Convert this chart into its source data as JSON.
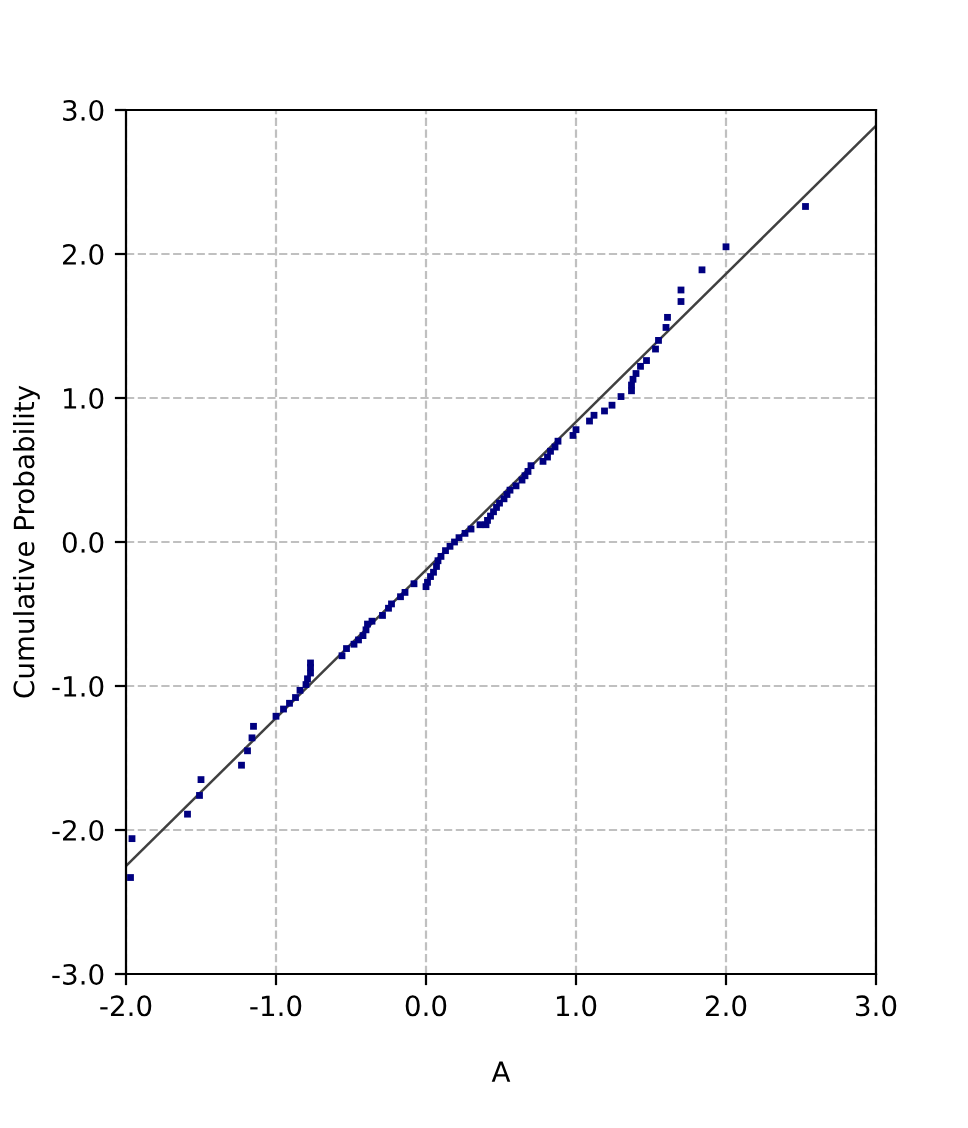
{
  "chart_data": {
    "type": "scatter",
    "xlabel": "A",
    "ylabel": "Cumulative Probability",
    "xlim": [
      -2,
      3
    ],
    "ylim": [
      -3,
      3
    ],
    "xticks": [
      {
        "value": -2,
        "label": "-2.0"
      },
      {
        "value": -1,
        "label": "-1.0"
      },
      {
        "value": 0,
        "label": "0.0"
      },
      {
        "value": 1,
        "label": "1.0"
      },
      {
        "value": 2,
        "label": "2.0"
      },
      {
        "value": 3,
        "label": "3.0"
      }
    ],
    "yticks": [
      {
        "value": -3,
        "label": "-3.0"
      },
      {
        "value": -2,
        "label": "-2.0"
      },
      {
        "value": -1,
        "label": "-1.0"
      },
      {
        "value": 0,
        "label": "0.0"
      },
      {
        "value": 1,
        "label": "1.0"
      },
      {
        "value": 2,
        "label": "2.0"
      },
      {
        "value": 3,
        "label": "3.0"
      }
    ],
    "grid": true,
    "series": [
      {
        "marker": "square",
        "color": "#000080",
        "x": [
          -1.97,
          -1.96,
          -1.59,
          -1.51,
          -1.5,
          -1.23,
          -1.19,
          -1.16,
          -1.15,
          -1.0,
          -0.95,
          -0.91,
          -0.87,
          -0.84,
          -0.8,
          -0.79,
          -0.77,
          -0.77,
          -0.77,
          -0.56,
          -0.53,
          -0.48,
          -0.45,
          -0.42,
          -0.4,
          -0.39,
          -0.36,
          -0.29,
          -0.25,
          -0.23,
          -0.17,
          -0.14,
          -0.08,
          0.0,
          0.01,
          0.03,
          0.05,
          0.07,
          0.08,
          0.1,
          0.13,
          0.16,
          0.19,
          0.22,
          0.26,
          0.3,
          0.36,
          0.4,
          0.41,
          0.43,
          0.45,
          0.47,
          0.49,
          0.52,
          0.54,
          0.56,
          0.6,
          0.64,
          0.66,
          0.68,
          0.7,
          0.78,
          0.81,
          0.83,
          0.86,
          0.88,
          0.98,
          1.0,
          1.09,
          1.12,
          1.19,
          1.24,
          1.3,
          1.37,
          1.37,
          1.38,
          1.4,
          1.43,
          1.47,
          1.53,
          1.55,
          1.6,
          1.61,
          1.7,
          1.7,
          1.84,
          2.0,
          2.53
        ],
        "values": [
          -2.33,
          -2.06,
          -1.89,
          -1.76,
          -1.65,
          -1.55,
          -1.45,
          -1.36,
          -1.28,
          -1.21,
          -1.16,
          -1.12,
          -1.08,
          -1.03,
          -0.99,
          -0.95,
          -0.91,
          -0.87,
          -0.84,
          -0.79,
          -0.74,
          -0.71,
          -0.68,
          -0.65,
          -0.61,
          -0.57,
          -0.55,
          -0.51,
          -0.46,
          -0.43,
          -0.38,
          -0.35,
          -0.29,
          -0.31,
          -0.28,
          -0.24,
          -0.21,
          -0.17,
          -0.13,
          -0.1,
          -0.06,
          -0.03,
          0.0,
          0.03,
          0.06,
          0.09,
          0.12,
          0.12,
          0.15,
          0.18,
          0.21,
          0.24,
          0.27,
          0.3,
          0.33,
          0.36,
          0.39,
          0.43,
          0.46,
          0.49,
          0.53,
          0.56,
          0.59,
          0.63,
          0.66,
          0.7,
          0.74,
          0.78,
          0.84,
          0.88,
          0.91,
          0.95,
          1.01,
          1.05,
          1.09,
          1.13,
          1.17,
          1.22,
          1.26,
          1.34,
          1.4,
          1.49,
          1.56,
          1.67,
          1.75,
          1.89,
          2.05,
          2.33
        ]
      },
      {
        "type": "line",
        "line_style": "solid",
        "color": "#404040",
        "x": [
          -2,
          3
        ],
        "values": [
          -2.25,
          2.89
        ]
      }
    ]
  }
}
